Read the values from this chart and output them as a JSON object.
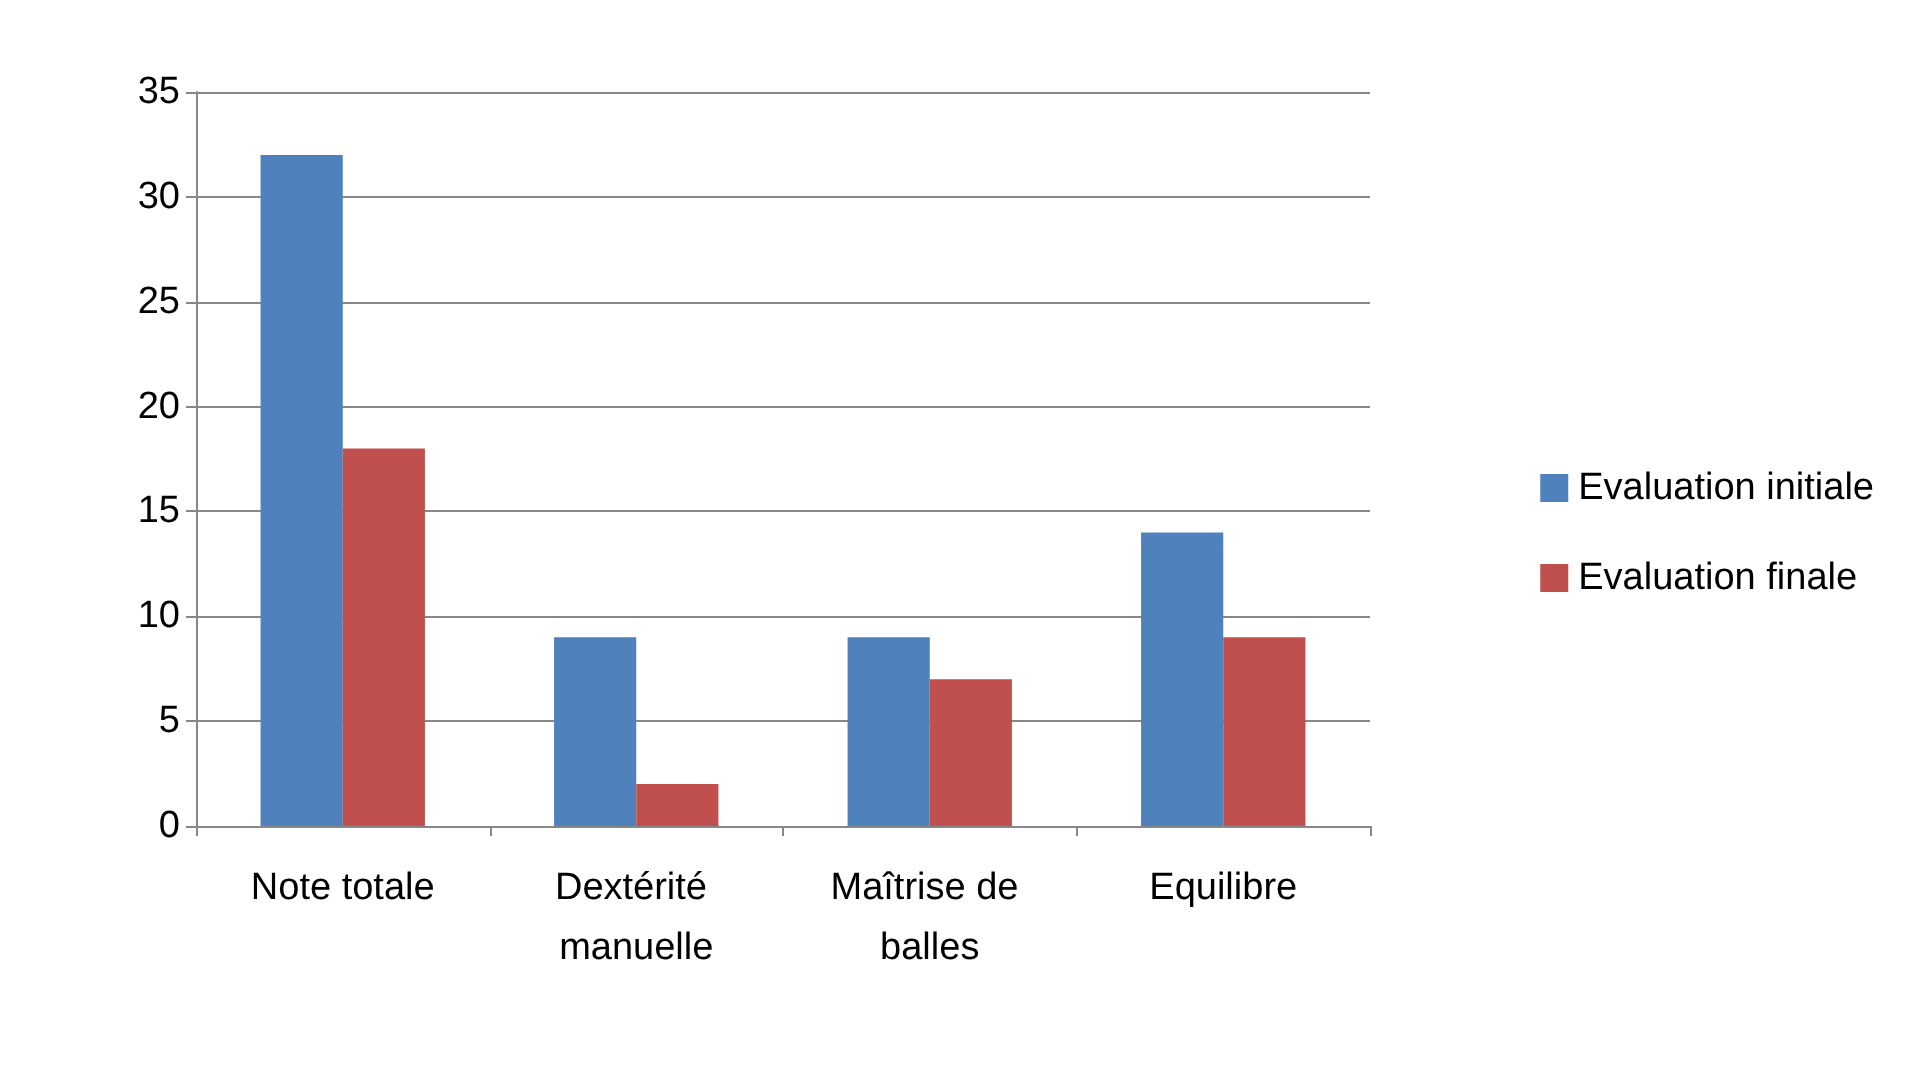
{
  "chart_data": {
    "type": "bar",
    "categories": [
      "Note totale",
      "Dextérité manuelle",
      "Maîtrise de balles",
      "Equilibre"
    ],
    "series": [
      {
        "name": "Evaluation initiale",
        "color": "#4f81bd",
        "values": [
          32,
          9,
          9,
          14
        ]
      },
      {
        "name": "Evaluation finale",
        "color": "#c0504d",
        "values": [
          18,
          2,
          7,
          9
        ]
      }
    ],
    "ylim": [
      0,
      35
    ],
    "yticks": [
      0,
      5,
      10,
      15,
      20,
      25,
      30,
      35
    ],
    "grid": "y",
    "legend": "right"
  }
}
